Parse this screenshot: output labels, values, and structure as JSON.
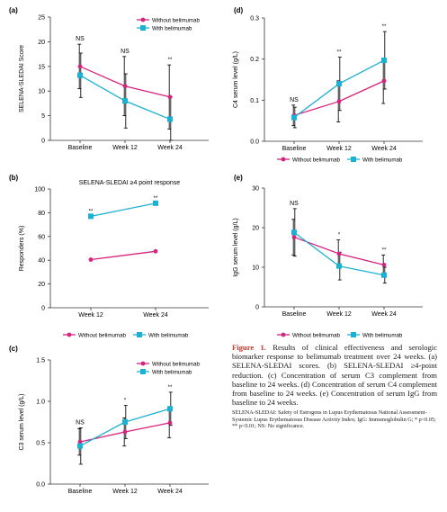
{
  "colors": {
    "without": "#d6237d",
    "with": "#1bb1d2",
    "axis": "#333333",
    "caption_accent": "#c0392b"
  },
  "chart_data": [
    {
      "id": "a",
      "panel_label": "(a)",
      "type": "line",
      "title": "",
      "xlabel": "",
      "ylabel": "SELENA-SLEDAI Score",
      "categories": [
        "Baseline",
        "Week 12",
        "Week 24"
      ],
      "ylim": [
        0,
        25
      ],
      "yticks": [
        0,
        5,
        10,
        15,
        20,
        25
      ],
      "legend_position": "top-right",
      "series": [
        {
          "name": "Without belimumab",
          "values": [
            15.0,
            11.0,
            8.8
          ],
          "errors": [
            4.5,
            6.0,
            6.5
          ]
        },
        {
          "name": "With belimumab",
          "values": [
            13.2,
            8.0,
            4.3
          ],
          "errors": [
            4.5,
            5.5,
            4.5
          ]
        }
      ],
      "annotations": [
        "NS",
        "NS",
        "**"
      ]
    },
    {
      "id": "b",
      "panel_label": "(b)",
      "type": "line",
      "title": "SELENA-SLEDAI ≥4 point response",
      "xlabel": "",
      "ylabel": "Responders (%)",
      "categories": [
        "Week 12",
        "Week 24"
      ],
      "ylim": [
        0,
        100
      ],
      "yticks": [
        0,
        20,
        40,
        60,
        80,
        100
      ],
      "legend_position": "bottom",
      "series": [
        {
          "name": "Without belimumab",
          "values": [
            40.5,
            47.5
          ]
        },
        {
          "name": "With belimumab",
          "values": [
            77.0,
            88.0
          ]
        }
      ],
      "annotations": [
        "**",
        "**"
      ]
    },
    {
      "id": "c",
      "panel_label": "(c)",
      "type": "line",
      "title": "",
      "xlabel": "",
      "ylabel": "C3 serum level (g/L)",
      "categories": [
        "Baseline",
        "Week 12",
        "Week 24"
      ],
      "ylim": [
        0.0,
        1.5
      ],
      "yticks": [
        "0.0",
        "0.5",
        "1.0",
        "1.5"
      ],
      "legend_position": "top-right",
      "series": [
        {
          "name": "Without belimumab",
          "values": [
            0.51,
            0.63,
            0.74
          ],
          "errors": [
            0.16,
            0.17,
            0.18
          ]
        },
        {
          "name": "With belimumab",
          "values": [
            0.46,
            0.75,
            0.91
          ],
          "errors": [
            0.22,
            0.2,
            0.2
          ]
        }
      ],
      "annotations": [
        "NS",
        "*",
        "**"
      ]
    },
    {
      "id": "d",
      "panel_label": "(d)",
      "type": "line",
      "title": "",
      "xlabel": "",
      "ylabel": "C4 serum level (g/L)",
      "categories": [
        "Baseline",
        "Week 12",
        "Week 24"
      ],
      "ylim": [
        0.0,
        0.3
      ],
      "yticks": [
        "0.0",
        "0.1",
        "0.2",
        "0.3"
      ],
      "legend_position": "bottom",
      "series": [
        {
          "name": "Without belimumab",
          "values": [
            0.063,
            0.097,
            0.147
          ],
          "errors": [
            0.025,
            0.05,
            0.055
          ]
        },
        {
          "name": "With belimumab",
          "values": [
            0.058,
            0.14,
            0.197
          ],
          "errors": [
            0.025,
            0.065,
            0.07
          ]
        }
      ],
      "annotations": [
        "NS",
        "**",
        "**"
      ]
    },
    {
      "id": "e",
      "panel_label": "(e)",
      "type": "line",
      "title": "",
      "xlabel": "",
      "ylabel": "IgG serum level (g/L)",
      "categories": [
        "Baseline",
        "Week 12",
        "Week 24"
      ],
      "ylim": [
        0,
        30
      ],
      "yticks": [
        0,
        10,
        20,
        30
      ],
      "legend_position": "bottom",
      "series": [
        {
          "name": "Without belimumab",
          "values": [
            17.6,
            13.4,
            10.6
          ],
          "errors": [
            4.5,
            3.5,
            2.5
          ]
        },
        {
          "name": "With belimumab",
          "values": [
            18.8,
            10.3,
            8.0
          ],
          "errors": [
            6.0,
            3.5,
            2.0
          ]
        }
      ],
      "annotations": [
        "NS",
        "*",
        "**"
      ]
    }
  ],
  "caption": {
    "figure_label": "Figure 1.",
    "text": "Results of clinical effectiveness and serologic biomarker response to belimumab treatment over 24 weeks. (a) SELENA-SLEDAI scores. (b) SELENA-SLEDAI ≥4-point reduction. (c) Concentration of serum C3 complement from baseline to 24 weeks. (d) Concentration of serum C4 complement from baseline to 24 weeks. (e) Concentration of serum IgG from baseline to 24 weeks.",
    "note": "SELENA-SLEDAI: Safety of Estrogens in Lupus Erythematosus National Assessment-Systemic Lupus Erythematosus Disease Activity Index; IgG: Immunoglobulin G; * p<0.05; ** p<0.01; NS: No significance."
  }
}
